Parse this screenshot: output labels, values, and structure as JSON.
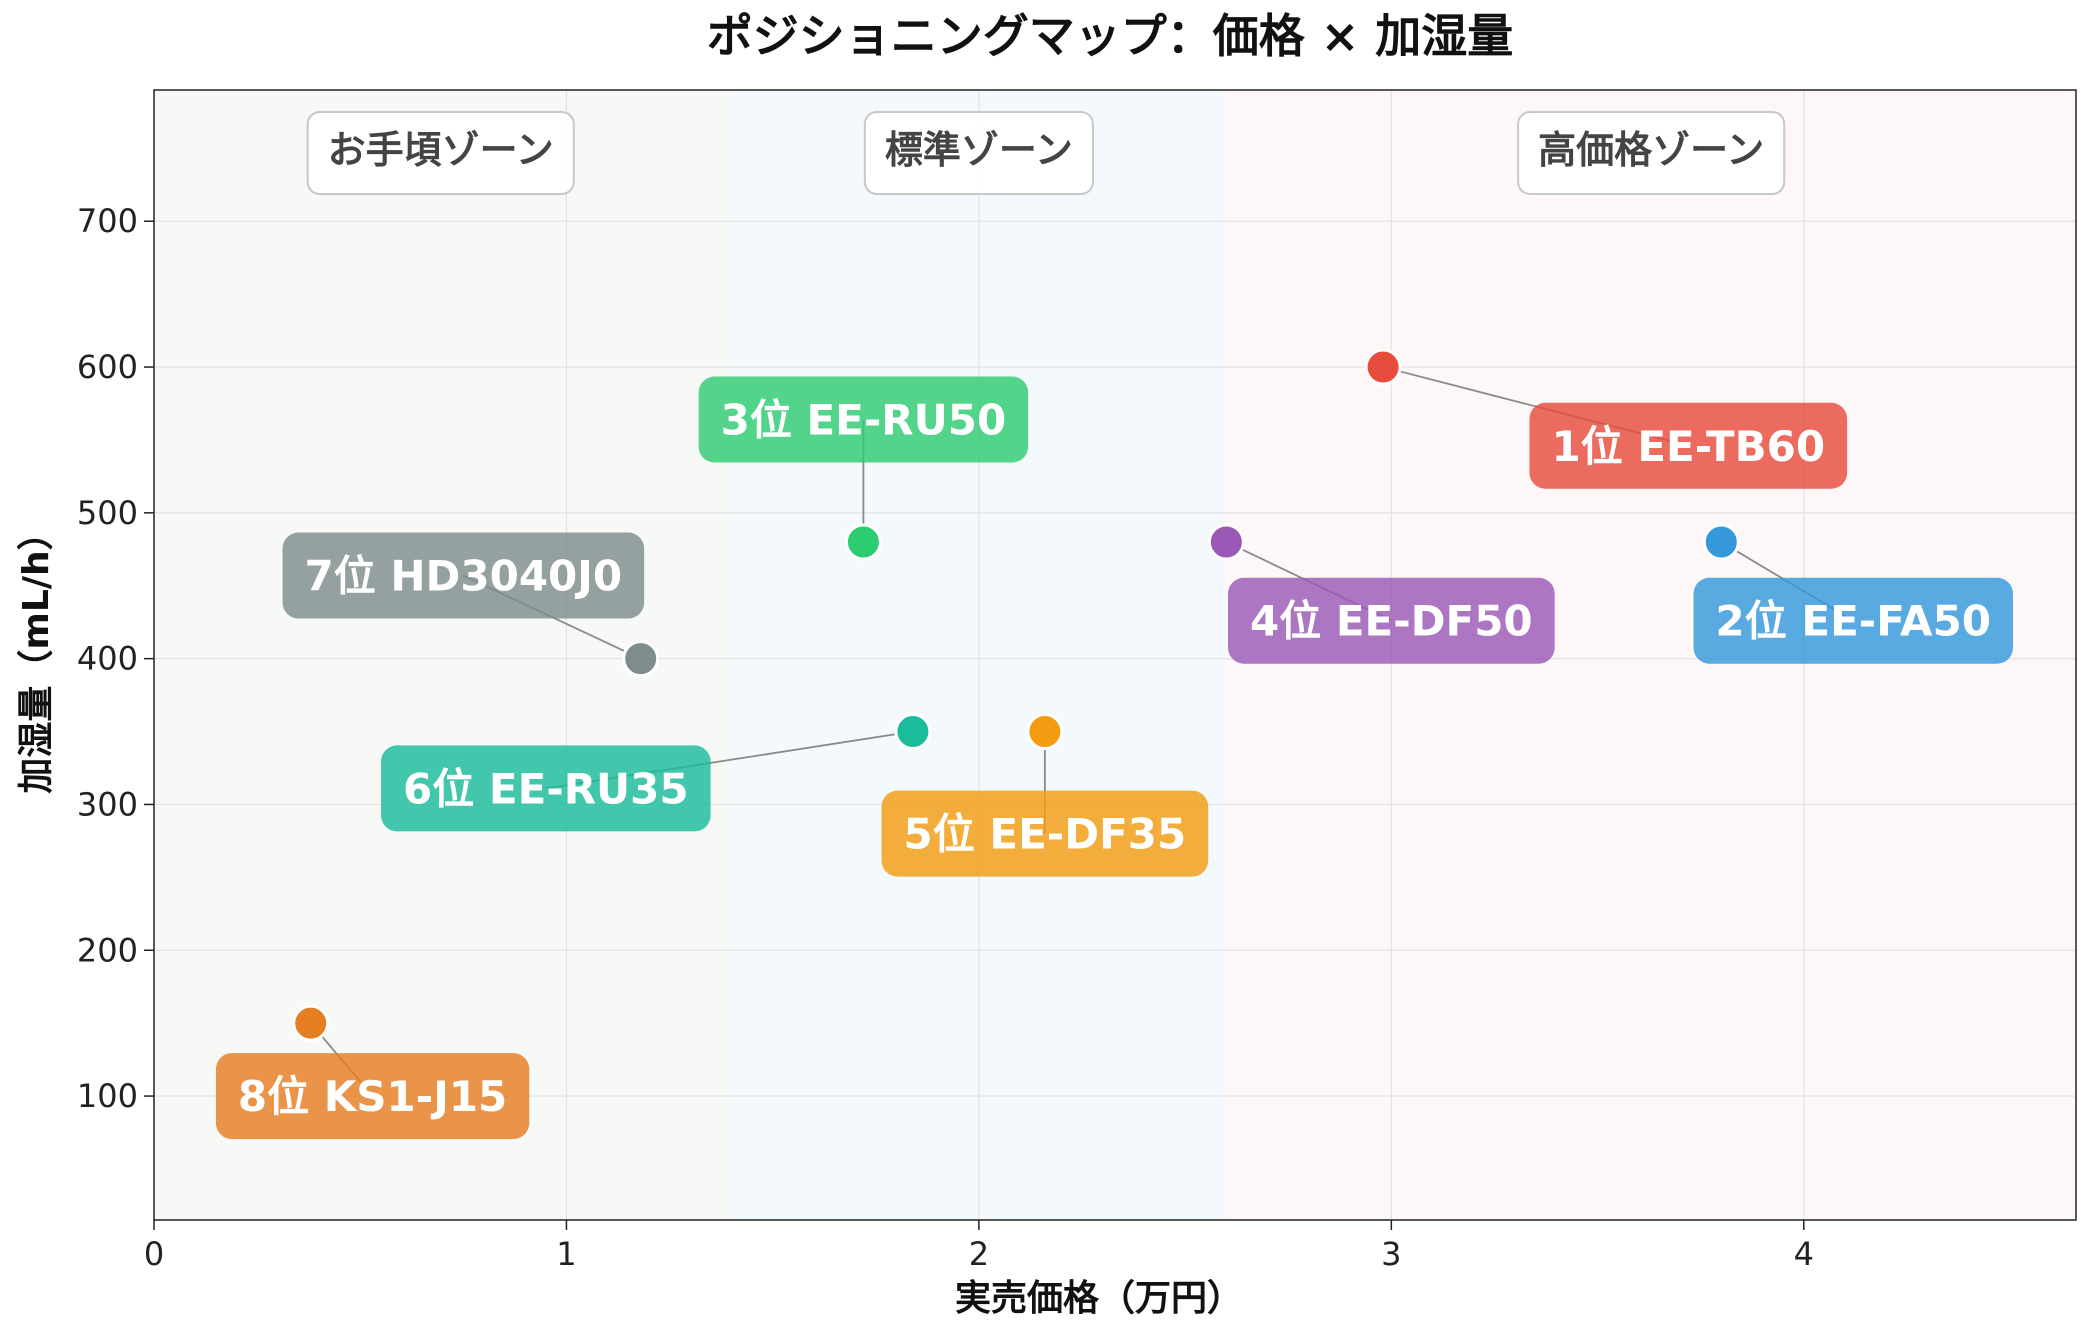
{
  "chart_data": {
    "type": "scatter",
    "title": "ポジショニングマップ：価格 × 加湿量",
    "xlabel": "実売価格（万円）",
    "ylabel": "加湿量（mL/h）",
    "xlim": [
      0,
      4.66
    ],
    "ylim": [
      15,
      790
    ],
    "xticks": [
      0,
      1,
      2,
      3,
      4
    ],
    "yticks": [
      100,
      200,
      300,
      400,
      500,
      600,
      700
    ],
    "grid": true,
    "zones": [
      {
        "label": "お手頃ゾーン",
        "x_range": [
          0,
          1.4
        ],
        "color": "#f7f9f6"
      },
      {
        "label": "標準ゾーン",
        "x_range": [
          1.4,
          2.6
        ],
        "color": "#f3f9fc"
      },
      {
        "label": "高価格ゾーン",
        "x_range": [
          2.6,
          4.66
        ],
        "color": "#fdf7f7"
      }
    ],
    "points": [
      {
        "label": "1位 EE-TB60",
        "x": 2.98,
        "y": 600,
        "color": "#e74c3c",
        "label_pos": [
          3.72,
          546
        ]
      },
      {
        "label": "2位 EE-FA50",
        "x": 3.8,
        "y": 480,
        "color": "#3498db",
        "label_pos": [
          4.12,
          426
        ]
      },
      {
        "label": "3位 EE-RU50",
        "x": 1.72,
        "y": 480,
        "color": "#2ecc71",
        "label_pos": [
          1.72,
          564
        ]
      },
      {
        "label": "4位 EE-DF50",
        "x": 2.6,
        "y": 480,
        "color": "#9b59b6",
        "label_pos": [
          3.0,
          426
        ]
      },
      {
        "label": "5位 EE-DF35",
        "x": 2.16,
        "y": 350,
        "color": "#f39c12",
        "label_pos": [
          2.16,
          280
        ]
      },
      {
        "label": "6位 EE-RU35",
        "x": 1.84,
        "y": 350,
        "color": "#1abc9c",
        "label_pos": [
          0.95,
          311
        ]
      },
      {
        "label": "7位 HD3040J0",
        "x": 1.18,
        "y": 400,
        "color": "#7f8c8d",
        "label_pos": [
          0.75,
          457
        ]
      },
      {
        "label": "8位 KS1-J15",
        "x": 0.38,
        "y": 150,
        "color": "#e67e22",
        "label_pos": [
          0.53,
          100
        ]
      }
    ]
  }
}
